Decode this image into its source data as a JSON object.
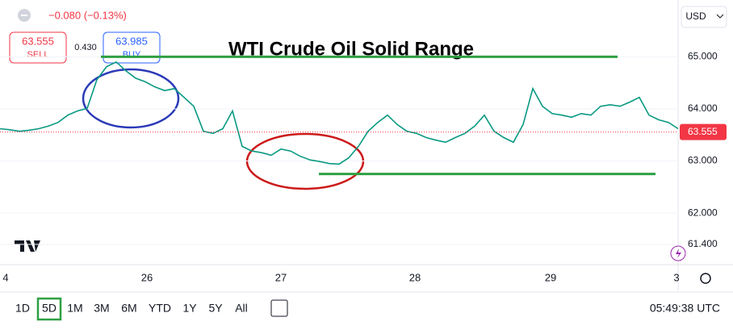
{
  "header": {
    "change": "−0.080 (−0.13%)",
    "sell_price": "63.555",
    "sell_label": "SELL",
    "spread": "0.430",
    "buy_price": "63.985",
    "buy_label": "BUY",
    "currency": "USD"
  },
  "chart_data": {
    "type": "line",
    "title": "WTI Crude Oil Solid Range",
    "color": "#089981",
    "values": [
      63.62,
      63.6,
      63.57,
      63.59,
      63.62,
      63.67,
      63.74,
      63.88,
      63.96,
      64.01,
      64.56,
      64.81,
      64.9,
      64.73,
      64.59,
      64.52,
      64.42,
      64.35,
      64.39,
      64.22,
      64.05,
      63.57,
      63.53,
      63.62,
      63.96,
      63.28,
      63.19,
      63.16,
      63.11,
      63.23,
      63.19,
      63.09,
      63.02,
      62.99,
      62.95,
      62.94,
      63.06,
      63.28,
      63.57,
      63.74,
      63.88,
      63.7,
      63.57,
      63.53,
      63.45,
      63.4,
      63.36,
      63.45,
      63.53,
      63.67,
      63.88,
      63.57,
      63.45,
      63.36,
      63.7,
      64.39,
      64.05,
      63.91,
      63.88,
      63.84,
      63.91,
      63.88,
      64.05,
      64.08,
      64.05,
      64.13,
      64.22,
      63.88,
      63.79,
      63.74,
      63.62
    ],
    "ylim": [
      61.01,
      66.09
    ],
    "yticks": [
      {
        "value": 65,
        "label": "65.000"
      },
      {
        "value": 64,
        "label": "64.000"
      },
      {
        "value": 63,
        "label": "63.000"
      },
      {
        "value": 62,
        "label": "62.000"
      },
      {
        "value": 61.4,
        "label": "61.400"
      }
    ],
    "x_labels": [
      "4",
      "26",
      "27",
      "28",
      "29",
      "3"
    ],
    "last_price": 63.555,
    "last_price_color": "#f23645",
    "levels": [
      {
        "value": 65.0,
        "color": "#2ea043"
      },
      {
        "value": 62.75,
        "color": "#2ea043"
      }
    ]
  },
  "toolbar": {
    "ranges": [
      "1D",
      "5D",
      "1M",
      "3M",
      "6M",
      "YTD",
      "1Y",
      "5Y",
      "All"
    ],
    "active": 1,
    "clock": "05:49:38 UTC"
  }
}
